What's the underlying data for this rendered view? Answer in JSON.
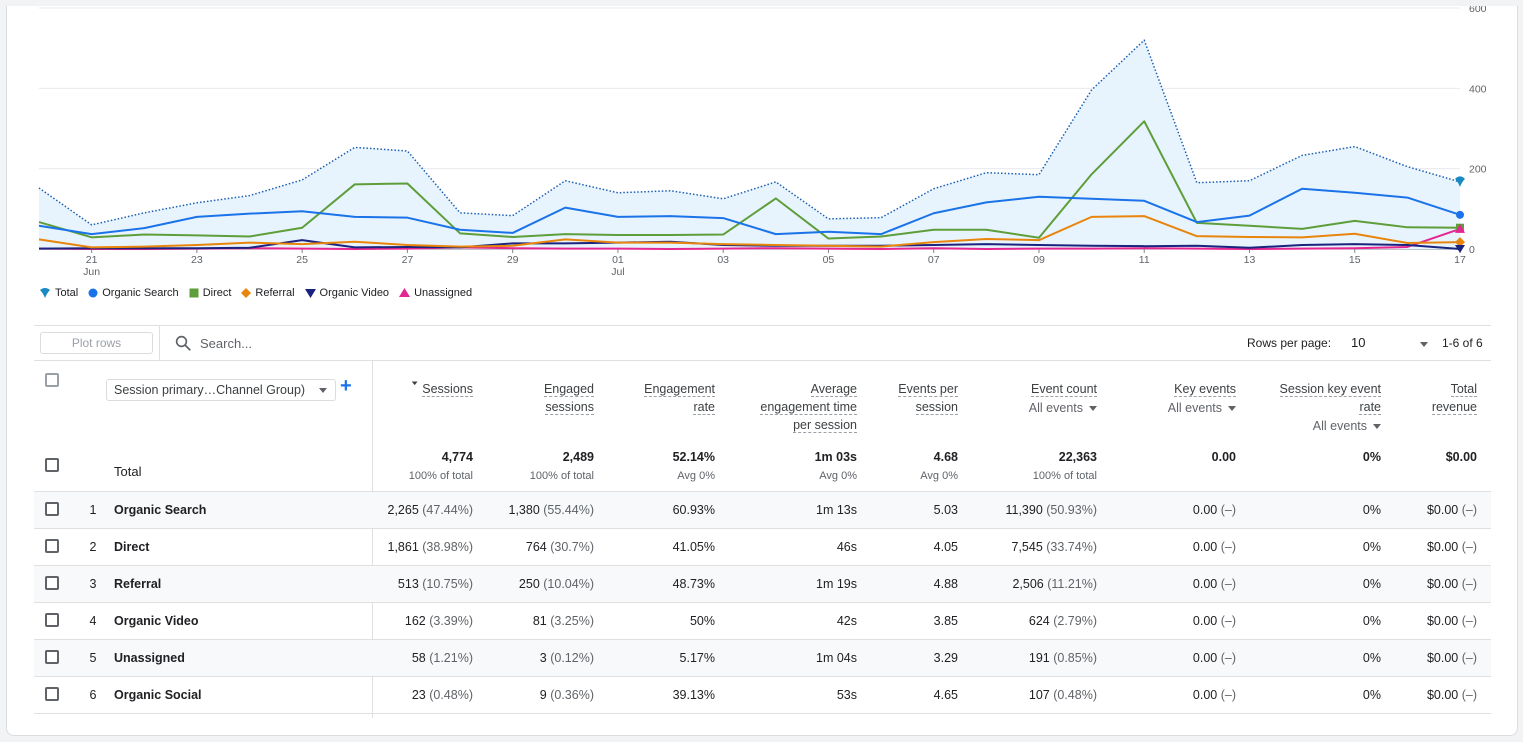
{
  "chart_data": {
    "type": "line",
    "x_tick_labels": [
      {
        "day": "21",
        "month": "Jun"
      },
      {
        "day": "23",
        "month": ""
      },
      {
        "day": "25",
        "month": ""
      },
      {
        "day": "27",
        "month": ""
      },
      {
        "day": "29",
        "month": ""
      },
      {
        "day": "01",
        "month": "Jul"
      },
      {
        "day": "03",
        "month": ""
      },
      {
        "day": "05",
        "month": ""
      },
      {
        "day": "07",
        "month": ""
      },
      {
        "day": "09",
        "month": ""
      },
      {
        "day": "11",
        "month": ""
      },
      {
        "day": "13",
        "month": ""
      },
      {
        "day": "15",
        "month": ""
      },
      {
        "day": "17",
        "month": ""
      }
    ],
    "y_ticks": [
      "0",
      "200",
      "400",
      "600"
    ],
    "ylim": [
      0,
      600
    ],
    "x_start_day": 20,
    "num_days": 28,
    "series": [
      {
        "name": "Total",
        "color": "#1a73e8",
        "style": "dotted",
        "marker": "pin",
        "values": [
          152,
          60,
          90,
          115,
          133,
          172,
          253,
          244,
          90,
          83,
          170,
          140,
          145,
          125,
          167,
          75,
          78,
          150,
          190,
          185,
          396,
          520,
          165,
          170,
          233,
          255,
          205,
          167
        ]
      },
      {
        "name": "Organic Search",
        "color": "#1a73e8",
        "style": "solid",
        "marker": "circle",
        "values": [
          58,
          37,
          52,
          80,
          88,
          94,
          80,
          78,
          48,
          40,
          103,
          80,
          82,
          77,
          37,
          43,
          37,
          89,
          116,
          130,
          125,
          120,
          67,
          83,
          150,
          140,
          128,
          85
        ]
      },
      {
        "name": "Direct",
        "color": "#5e9e3a",
        "style": "solid",
        "marker": "square",
        "values": [
          67,
          29,
          36,
          34,
          31,
          53,
          161,
          163,
          39,
          30,
          37,
          35,
          35,
          36,
          126,
          26,
          31,
          48,
          48,
          28,
          186,
          318,
          65,
          58,
          50,
          70,
          54,
          53
        ]
      },
      {
        "name": "Referral",
        "color": "#e8850c",
        "style": "solid",
        "marker": "diamond",
        "values": [
          24,
          4,
          6,
          10,
          16,
          12,
          18,
          10,
          6,
          8,
          24,
          16,
          16,
          12,
          10,
          8,
          6,
          17,
          25,
          22,
          80,
          82,
          32,
          30,
          29,
          38,
          15,
          17
        ]
      },
      {
        "name": "Organic Video",
        "color": "#1a237e",
        "style": "solid",
        "marker": "triangle-down",
        "values": [
          1,
          2,
          2,
          2,
          3,
          22,
          4,
          5,
          4,
          14,
          14,
          16,
          18,
          10,
          8,
          8,
          8,
          10,
          12,
          10,
          8,
          7,
          8,
          3,
          10,
          12,
          10,
          0
        ]
      },
      {
        "name": "Unassigned",
        "color": "#e52592",
        "style": "solid",
        "marker": "triangle-up",
        "values": [
          1,
          0,
          0,
          1,
          2,
          1,
          0,
          1,
          4,
          2,
          1,
          1,
          0,
          1,
          2,
          1,
          0,
          2,
          0,
          1,
          1,
          2,
          1,
          0,
          1,
          2,
          5,
          50
        ]
      }
    ],
    "fill_series": "Total"
  },
  "toolbar": {
    "plot_rows_label": "Plot rows",
    "search_placeholder": "Search...",
    "rows_per_page_label": "Rows per page:",
    "rows_per_page_value": "10",
    "pagination": "1-6 of 6"
  },
  "table": {
    "dimension_label": "Session primary…Channel Group)",
    "columns": [
      {
        "title1": "Sessions",
        "title2": "",
        "title3": "",
        "sub": ""
      },
      {
        "title1": "Engaged",
        "title2": "sessions",
        "title3": "",
        "sub": ""
      },
      {
        "title1": "Engagement",
        "title2": "rate",
        "title3": "",
        "sub": ""
      },
      {
        "title1": "Average",
        "title2": "engagement time",
        "title3": "per session",
        "sub": ""
      },
      {
        "title1": "Events per",
        "title2": "session",
        "title3": "",
        "sub": ""
      },
      {
        "title1": "Event count",
        "title2": "",
        "title3": "",
        "sub": "All events"
      },
      {
        "title1": "Key events",
        "title2": "",
        "title3": "",
        "sub": "All events"
      },
      {
        "title1": "Session key event",
        "title2": "rate",
        "title3": "",
        "sub": "All events"
      },
      {
        "title1": "Total",
        "title2": "revenue",
        "title3": "",
        "sub": ""
      }
    ],
    "totals_label": "Total",
    "totals": [
      {
        "value": "4,774",
        "sub": "100% of total"
      },
      {
        "value": "2,489",
        "sub": "100% of total"
      },
      {
        "value": "52.14%",
        "sub": "Avg 0%"
      },
      {
        "value": "1m 03s",
        "sub": "Avg 0%"
      },
      {
        "value": "4.68",
        "sub": "Avg 0%"
      },
      {
        "value": "22,363",
        "sub": "100% of total"
      },
      {
        "value": "0.00",
        "sub": ""
      },
      {
        "value": "0%",
        "sub": ""
      },
      {
        "value": "$0.00",
        "sub": ""
      }
    ],
    "rows": [
      {
        "idx": "1",
        "name": "Organic Search",
        "cells": [
          [
            "2,265",
            "(47.44%)"
          ],
          [
            "1,380",
            "(55.44%)"
          ],
          [
            "60.93%",
            ""
          ],
          [
            "1m 13s",
            ""
          ],
          [
            "5.03",
            ""
          ],
          [
            "11,390",
            "(50.93%)"
          ],
          [
            "0.00",
            "(–)"
          ],
          [
            "0%",
            ""
          ],
          [
            "$0.00",
            "(–)"
          ]
        ]
      },
      {
        "idx": "2",
        "name": "Direct",
        "cells": [
          [
            "1,861",
            "(38.98%)"
          ],
          [
            "764",
            "(30.7%)"
          ],
          [
            "41.05%",
            ""
          ],
          [
            "46s",
            ""
          ],
          [
            "4.05",
            ""
          ],
          [
            "7,545",
            "(33.74%)"
          ],
          [
            "0.00",
            "(–)"
          ],
          [
            "0%",
            ""
          ],
          [
            "$0.00",
            "(–)"
          ]
        ]
      },
      {
        "idx": "3",
        "name": "Referral",
        "cells": [
          [
            "513",
            "(10.75%)"
          ],
          [
            "250",
            "(10.04%)"
          ],
          [
            "48.73%",
            ""
          ],
          [
            "1m 19s",
            ""
          ],
          [
            "4.88",
            ""
          ],
          [
            "2,506",
            "(11.21%)"
          ],
          [
            "0.00",
            "(–)"
          ],
          [
            "0%",
            ""
          ],
          [
            "$0.00",
            "(–)"
          ]
        ]
      },
      {
        "idx": "4",
        "name": "Organic Video",
        "cells": [
          [
            "162",
            "(3.39%)"
          ],
          [
            "81",
            "(3.25%)"
          ],
          [
            "50%",
            ""
          ],
          [
            "42s",
            ""
          ],
          [
            "3.85",
            ""
          ],
          [
            "624",
            "(2.79%)"
          ],
          [
            "0.00",
            "(–)"
          ],
          [
            "0%",
            ""
          ],
          [
            "$0.00",
            "(–)"
          ]
        ]
      },
      {
        "idx": "5",
        "name": "Unassigned",
        "cells": [
          [
            "58",
            "(1.21%)"
          ],
          [
            "3",
            "(0.12%)"
          ],
          [
            "5.17%",
            ""
          ],
          [
            "1m 04s",
            ""
          ],
          [
            "3.29",
            ""
          ],
          [
            "191",
            "(0.85%)"
          ],
          [
            "0.00",
            "(–)"
          ],
          [
            "0%",
            ""
          ],
          [
            "$0.00",
            "(–)"
          ]
        ]
      },
      {
        "idx": "6",
        "name": "Organic Social",
        "cells": [
          [
            "23",
            "(0.48%)"
          ],
          [
            "9",
            "(0.36%)"
          ],
          [
            "39.13%",
            ""
          ],
          [
            "53s",
            ""
          ],
          [
            "4.65",
            ""
          ],
          [
            "107",
            "(0.48%)"
          ],
          [
            "0.00",
            "(–)"
          ],
          [
            "0%",
            ""
          ],
          [
            "$0.00",
            "(–)"
          ]
        ]
      }
    ]
  }
}
